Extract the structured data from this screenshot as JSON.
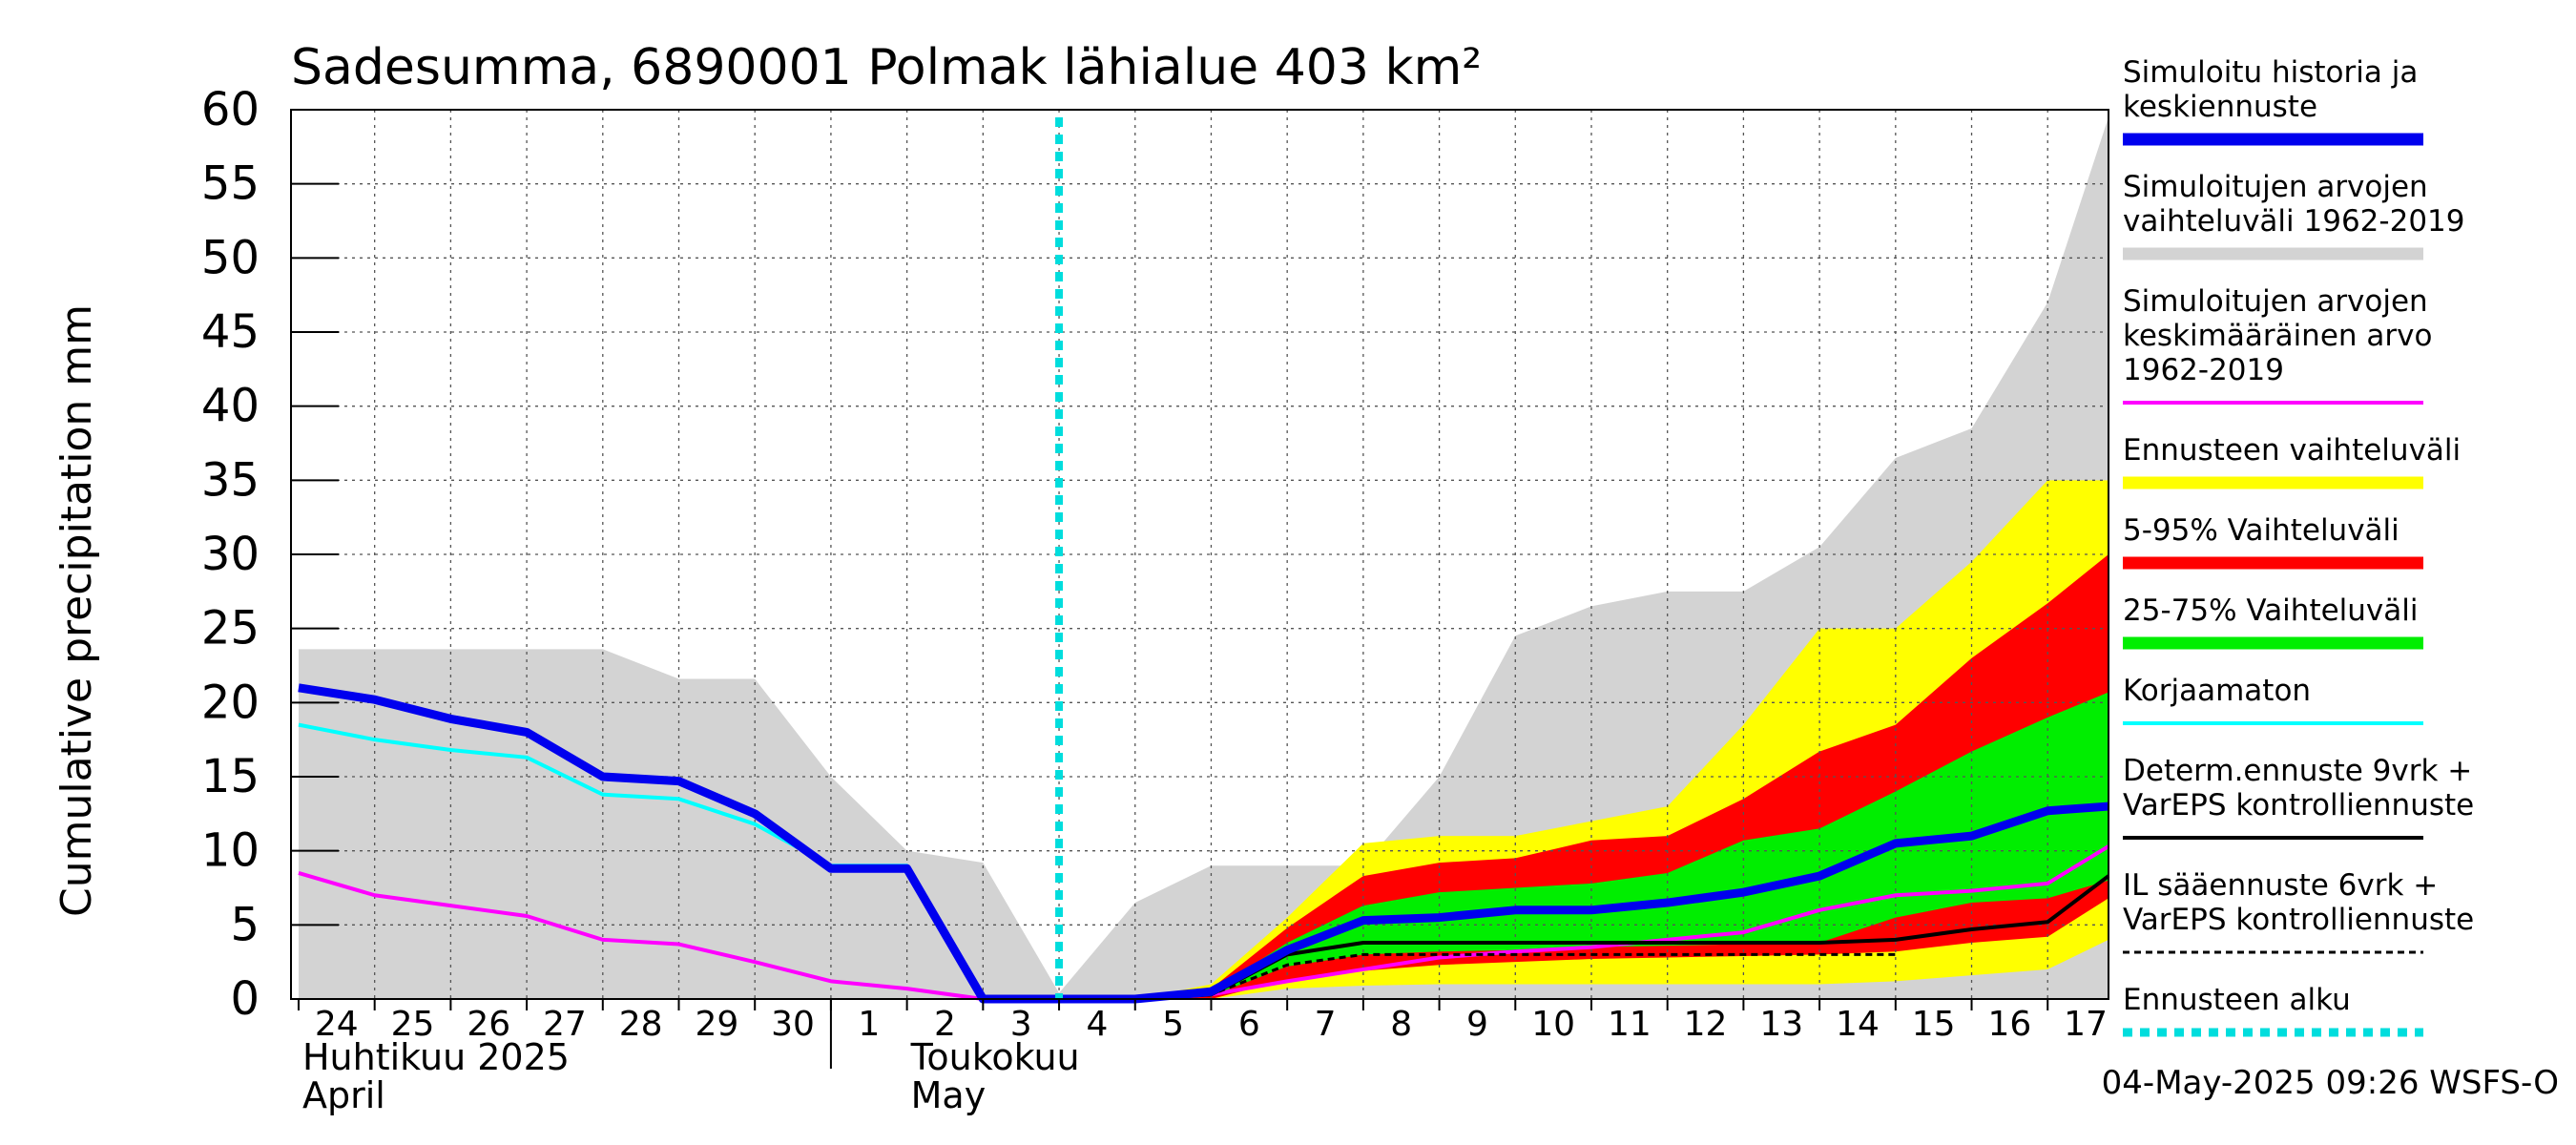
{
  "chart_data": {
    "type": "area",
    "title": "Sadesumma, 6890001 Polmak lähialue 403 km²",
    "ylabel": "Cumulative precipitation   mm",
    "ylim": [
      0,
      60
    ],
    "yticks": [
      0,
      5,
      10,
      15,
      20,
      25,
      30,
      35,
      40,
      45,
      50,
      55,
      60
    ],
    "xlim": [
      -0.1,
      23.8
    ],
    "xticks": [
      {
        "x": 0.5,
        "label": "24"
      },
      {
        "x": 1.5,
        "label": "25"
      },
      {
        "x": 2.5,
        "label": "26"
      },
      {
        "x": 3.5,
        "label": "27"
      },
      {
        "x": 4.5,
        "label": "28"
      },
      {
        "x": 5.5,
        "label": "29"
      },
      {
        "x": 6.5,
        "label": "30"
      },
      {
        "x": 7.5,
        "label": "1"
      },
      {
        "x": 8.5,
        "label": "2"
      },
      {
        "x": 9.5,
        "label": "3"
      },
      {
        "x": 10.5,
        "label": "4"
      },
      {
        "x": 11.5,
        "label": "5"
      },
      {
        "x": 12.5,
        "label": "6"
      },
      {
        "x": 13.5,
        "label": "7"
      },
      {
        "x": 14.5,
        "label": "8"
      },
      {
        "x": 15.5,
        "label": "9"
      },
      {
        "x": 16.5,
        "label": "10"
      },
      {
        "x": 17.5,
        "label": "11"
      },
      {
        "x": 18.5,
        "label": "12"
      },
      {
        "x": 19.5,
        "label": "13"
      },
      {
        "x": 20.5,
        "label": "14"
      },
      {
        "x": 21.5,
        "label": "15"
      },
      {
        "x": 22.5,
        "label": "16"
      },
      {
        "x": 23.5,
        "label": "17"
      }
    ],
    "month_labels": [
      {
        "x": 0,
        "line1": "Huhtikuu  2025",
        "line2": "April"
      },
      {
        "x": 8,
        "line1": "Toukokuu",
        "line2": "May"
      }
    ],
    "month_divider_x": 7,
    "forecast_start_x": 10,
    "timestamp": "04-May-2025 09:26 WSFS-O",
    "colors": {
      "hist_range": "#d3d3d3",
      "mean": "#ff00ff",
      "sim": "#0000ee",
      "uncorrected": "#00ffff",
      "forecast_range": "#ffff00",
      "p5_95": "#ff0000",
      "p25_75": "#00ee00",
      "determ": "#000000",
      "forecast_start": "#00dddd"
    },
    "series": [
      {
        "name": "Simuloitujen arvojen vaihteluväli 1962-2019",
        "kind": "band",
        "x": [
          0,
          1,
          2,
          3,
          4,
          5,
          6,
          7,
          8,
          9,
          10,
          11,
          12,
          13,
          14,
          15,
          16,
          17,
          18,
          19,
          20,
          21,
          22,
          23,
          23.8
        ],
        "upper": [
          23.6,
          23.6,
          23.6,
          23.6,
          23.6,
          21.6,
          21.6,
          15,
          10,
          9.2,
          0.4,
          6.5,
          9,
          9,
          9,
          15,
          24.5,
          26.5,
          27.5,
          27.5,
          30.5,
          36.5,
          38.5,
          47,
          59.5
        ],
        "lower": [
          0,
          0,
          0,
          0,
          0,
          0,
          0,
          0,
          0,
          0,
          0,
          0,
          0,
          0,
          0,
          0,
          0,
          0,
          0,
          0,
          0,
          0,
          0,
          0,
          0
        ]
      },
      {
        "name": "Ennusteen vaihteluväli",
        "kind": "band",
        "x": [
          10,
          11,
          12,
          13,
          14,
          15,
          16,
          17,
          18,
          19,
          20,
          21,
          22,
          23,
          23.8
        ],
        "upper": [
          0,
          0,
          1,
          5.5,
          10.5,
          11,
          11,
          12,
          13,
          18.5,
          25,
          25,
          29.5,
          35,
          35
        ],
        "lower": [
          0,
          0,
          0,
          0.7,
          0.9,
          1,
          1,
          1,
          1,
          1,
          1,
          1.2,
          1.6,
          2,
          4
        ]
      },
      {
        "name": "5-95% Vaihteluväli",
        "kind": "band",
        "x": [
          10,
          11,
          12,
          13,
          14,
          15,
          16,
          17,
          18,
          19,
          20,
          21,
          22,
          23,
          23.8
        ],
        "upper": [
          0,
          0,
          0.7,
          4.8,
          8.3,
          9.2,
          9.5,
          10.7,
          11,
          13.5,
          16.7,
          18.5,
          23,
          26.7,
          30
        ],
        "lower": [
          0,
          0,
          0,
          1.3,
          1.9,
          2.3,
          2.5,
          2.7,
          2.8,
          2.9,
          3,
          3.2,
          3.8,
          4.2,
          6.8
        ]
      },
      {
        "name": "25-75% Vaihteluväli",
        "kind": "band",
        "x": [
          10,
          11,
          12,
          13,
          14,
          15,
          16,
          17,
          18,
          19,
          20,
          21,
          22,
          23,
          23.8
        ],
        "upper": [
          0,
          0,
          0.5,
          3.8,
          6.3,
          7.2,
          7.5,
          7.8,
          8.5,
          10.7,
          11.5,
          14,
          16.7,
          19,
          20.7
        ],
        "lower": [
          0,
          0,
          0.2,
          2.2,
          3,
          3.2,
          3.3,
          3.5,
          3.6,
          3.7,
          3.8,
          5.5,
          6.5,
          6.8,
          8
        ]
      },
      {
        "name": "Simuloitujen arvojen keskimääräinen arvo 1962-2019",
        "kind": "line",
        "x": [
          0,
          1,
          2,
          3,
          4,
          5,
          6,
          7,
          8,
          9,
          10,
          11,
          12,
          13,
          14,
          15,
          16,
          17,
          18,
          19,
          20,
          21,
          22,
          23,
          23.8
        ],
        "values": [
          8.5,
          7,
          6.3,
          5.6,
          4,
          3.7,
          2.5,
          1.2,
          0.7,
          0,
          0,
          0,
          0.3,
          1.2,
          2,
          2.8,
          3.2,
          3.5,
          4,
          4.5,
          6,
          7,
          7.3,
          7.8,
          10.3
        ]
      },
      {
        "name": "Korjaamaton",
        "kind": "line",
        "x": [
          0,
          1,
          2,
          3,
          4,
          5,
          6,
          7,
          8,
          9,
          10
        ],
        "values": [
          18.5,
          17.5,
          16.8,
          16.3,
          13.8,
          13.5,
          11.8,
          9,
          9,
          0,
          0
        ]
      },
      {
        "name": "Determ.ennuste 9vrk + VarEPS kontrolliennuste",
        "kind": "line",
        "x": [
          10,
          11,
          12,
          13,
          14,
          15,
          16,
          17,
          18,
          19,
          20,
          21,
          22,
          23,
          23.8
        ],
        "values": [
          0,
          0,
          0.3,
          3,
          3.8,
          3.8,
          3.8,
          3.8,
          3.8,
          3.8,
          3.8,
          4,
          4.7,
          5.2,
          8.3
        ]
      },
      {
        "name": "IL sääennuste 6vrk + VarEPS kontrolliennuste",
        "kind": "dashed",
        "x": [
          10,
          11,
          12,
          13,
          14,
          15,
          16,
          17,
          18,
          19,
          20,
          21
        ],
        "values": [
          0,
          0,
          0.3,
          2.3,
          3,
          3,
          3,
          3,
          3,
          3,
          3,
          3
        ]
      },
      {
        "name": "Simuloitu historia ja keskiennuste",
        "kind": "line",
        "x": [
          0,
          1,
          2,
          3,
          4,
          5,
          6,
          7,
          8,
          9,
          10,
          11,
          12,
          13,
          14,
          15,
          16,
          17,
          18,
          19,
          20,
          21,
          22,
          23,
          23.8
        ],
        "values": [
          21,
          20.2,
          18.9,
          18,
          15,
          14.7,
          12.5,
          8.8,
          8.8,
          0,
          0,
          0,
          0.5,
          3.3,
          5.3,
          5.5,
          6,
          6,
          6.5,
          7.2,
          8.3,
          10.5,
          11,
          12.7,
          13
        ]
      }
    ],
    "legend": [
      {
        "text": [
          "Simuloitu historia ja",
          "keskiennuste"
        ],
        "color": "#0000ee",
        "style": "thick"
      },
      {
        "text": [
          "Simuloitujen arvojen",
          "vaihteluväli 1962-2019"
        ],
        "color": "#d3d3d3",
        "style": "thick"
      },
      {
        "text": [
          "Simuloitujen arvojen",
          "keskimääräinen arvo",
          "   1962-2019"
        ],
        "color": "#ff00ff",
        "style": "thin"
      },
      {
        "text": [
          "Ennusteen vaihteluväli"
        ],
        "color": "#ffff00",
        "style": "thick"
      },
      {
        "text": [
          "5-95% Vaihteluväli"
        ],
        "color": "#ff0000",
        "style": "thick"
      },
      {
        "text": [
          "25-75% Vaihteluväli"
        ],
        "color": "#00ee00",
        "style": "thick"
      },
      {
        "text": [
          "Korjaamaton"
        ],
        "color": "#00ffff",
        "style": "thin"
      },
      {
        "text": [
          "Determ.ennuste 9vrk +",
          "VarEPS kontrolliennuste"
        ],
        "color": "#000000",
        "style": "thin"
      },
      {
        "text": [
          "IL sääennuste 6vrk  +",
          "  VarEPS kontrolliennuste"
        ],
        "color": "#000000",
        "style": "dashed"
      },
      {
        "text": [
          "Ennusteen alku"
        ],
        "color": "#00dddd",
        "style": "dotted"
      }
    ]
  }
}
